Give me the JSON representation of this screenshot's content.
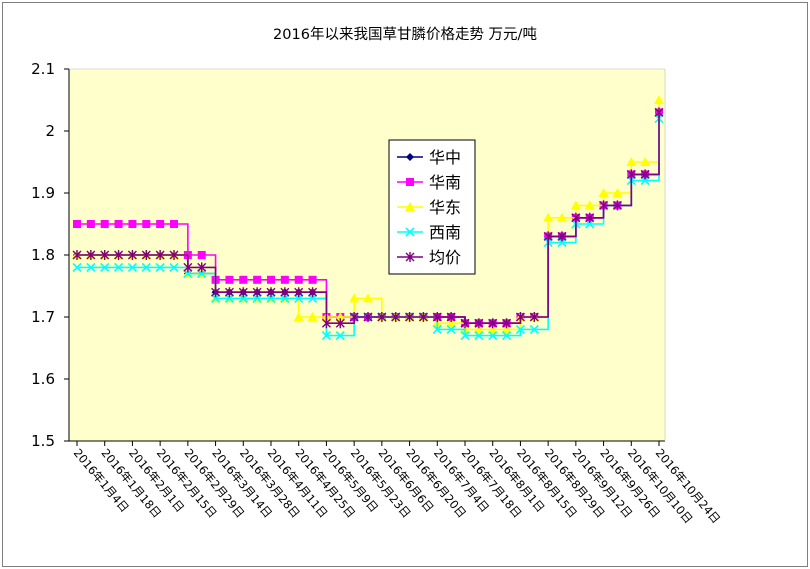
{
  "chart_data": {
    "type": "line",
    "title": "2016年以来我国草甘膦价格走势 万元/吨",
    "ylim": [
      1.5,
      2.1
    ],
    "yticks": [
      "1.5",
      "1.6",
      "1.7",
      "1.8",
      "1.9",
      "2",
      "2.1"
    ],
    "grid": false,
    "legend_position": "center",
    "plot_background": "#ffffcc",
    "categories": [
      "2016年1月4日",
      "2016年1月18日",
      "2016年2月1日",
      "2016年2月15日",
      "2016年2月29日",
      "2016年3月14日",
      "2016年3月28日",
      "2016年4月11日",
      "2016年4月25日",
      "2016年5月9日",
      "2016年5月23日",
      "2016年6月6日",
      "2016年6月20日",
      "2016年7月4日",
      "2016年7月18日",
      "2016年8月1日",
      "2016年8月15日",
      "2016年8月29日",
      "2016年9月12日",
      "2016年9月26日",
      "2016年10月10日",
      "2016年10月24日"
    ],
    "series": [
      {
        "name": "华中",
        "color": "#000080",
        "marker": "diamond",
        "values": [
          1.8,
          1.8,
          1.8,
          1.8,
          1.77,
          1.74,
          1.74,
          1.74,
          1.74,
          1.7,
          1.7,
          1.7,
          1.7,
          1.7,
          1.69,
          1.69,
          1.7,
          1.83,
          1.86,
          1.88,
          1.93,
          2.03
        ]
      },
      {
        "name": "华南",
        "color": "#ff00ff",
        "marker": "square",
        "values": [
          1.85,
          1.85,
          1.85,
          1.85,
          1.8,
          1.76,
          1.76,
          1.76,
          1.76,
          1.7,
          1.7,
          1.7,
          1.7,
          1.7,
          1.69,
          1.69,
          1.7,
          1.83,
          1.86,
          1.88,
          1.93,
          2.03
        ]
      },
      {
        "name": "华东",
        "color": "#ffff00",
        "marker": "triangle",
        "values": [
          1.8,
          1.8,
          1.8,
          1.8,
          1.77,
          1.73,
          1.73,
          1.73,
          1.7,
          1.7,
          1.73,
          1.7,
          1.7,
          1.69,
          1.68,
          1.68,
          1.7,
          1.86,
          1.88,
          1.9,
          1.95,
          2.05
        ]
      },
      {
        "name": "西南",
        "color": "#00ffff",
        "marker": "x",
        "values": [
          1.78,
          1.78,
          1.78,
          1.78,
          1.77,
          1.73,
          1.73,
          1.73,
          1.73,
          1.67,
          1.7,
          1.7,
          1.7,
          1.68,
          1.67,
          1.67,
          1.68,
          1.82,
          1.85,
          1.88,
          1.92,
          2.02
        ]
      },
      {
        "name": "均价",
        "color": "#800080",
        "marker": "star",
        "values": [
          1.8,
          1.8,
          1.8,
          1.8,
          1.78,
          1.74,
          1.74,
          1.74,
          1.74,
          1.69,
          1.7,
          1.7,
          1.7,
          1.7,
          1.69,
          1.69,
          1.7,
          1.83,
          1.86,
          1.88,
          1.93,
          2.03
        ]
      }
    ]
  }
}
